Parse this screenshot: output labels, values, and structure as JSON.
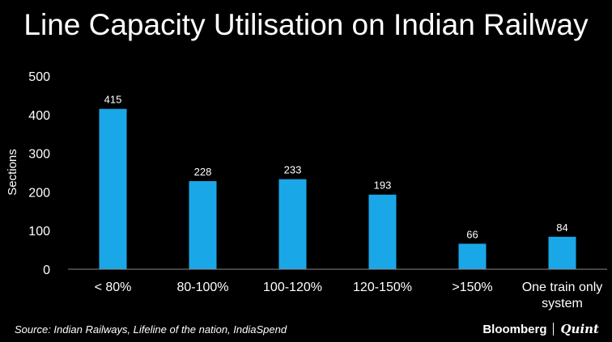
{
  "header": {
    "title": "Line Capacity Utilisation on Indian Railway"
  },
  "chart_data": {
    "type": "bar",
    "title": "Line Capacity Utilisation on Indian Railway",
    "xlabel": "",
    "ylabel": "Sections",
    "ylim": [
      0,
      500
    ],
    "yticks": [
      0,
      100,
      200,
      300,
      400,
      500
    ],
    "categories": [
      [
        "< 80%"
      ],
      [
        "80-100%"
      ],
      [
        "100-120%"
      ],
      [
        "120-150%"
      ],
      [
        ">150%"
      ],
      [
        "One train only",
        "system"
      ]
    ],
    "values": [
      415,
      228,
      233,
      193,
      66,
      84
    ],
    "data_labels": true,
    "grid": false,
    "bar_color": "#1aa7e8",
    "axis_color": "#8a8a8a"
  },
  "footer": {
    "source": "Source: Indian Railways, Lifeline of the nation, IndiaSpend",
    "brand_left": "Bloomberg",
    "brand_right": "Quint"
  }
}
